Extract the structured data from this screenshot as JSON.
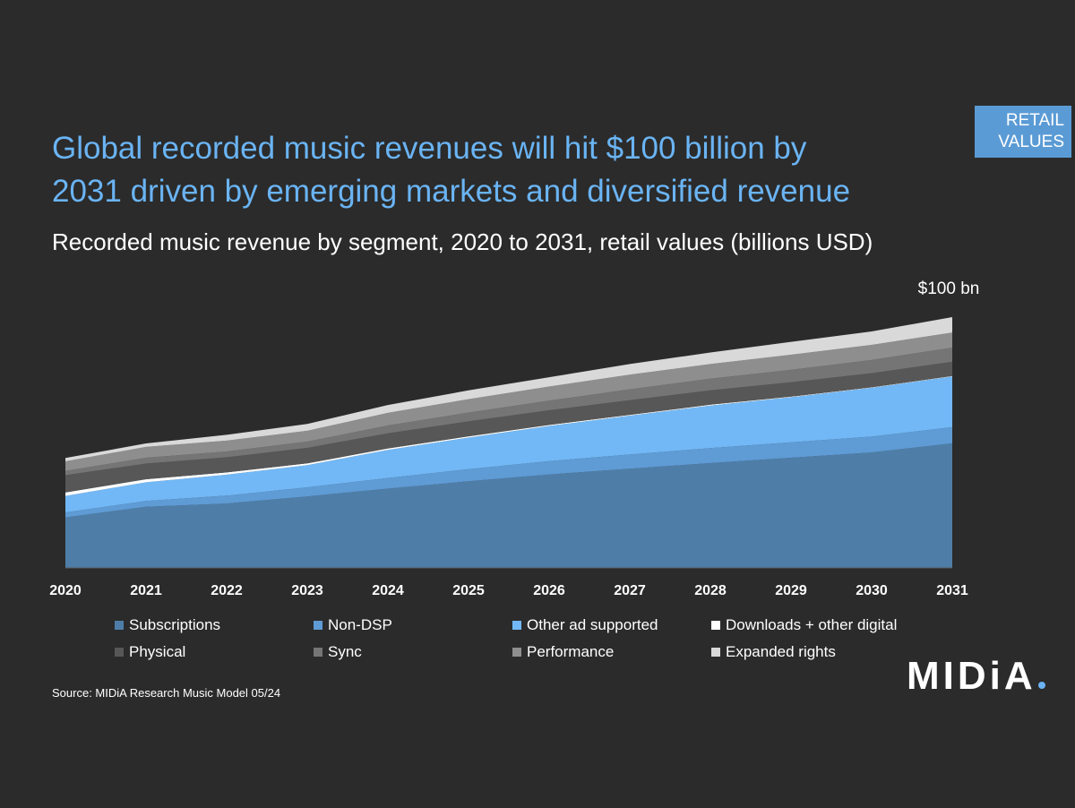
{
  "badge": {
    "line1": "RETAIL",
    "line2": "VALUES"
  },
  "title": {
    "line1": "Global recorded music revenues will hit $100 billion by",
    "line2": "2031 driven by emerging markets and diversified revenue"
  },
  "subtitle": "Recorded music revenue by segment, 2020 to 2031, retail values (billions USD)",
  "source": "Source: MIDiA Research Music Model 05/24",
  "logo": {
    "text": "MIDiA"
  },
  "colors": {
    "background": "#2b2b2b",
    "title": "#6ab4f4",
    "badge": "#5b9bd5"
  },
  "chart_data": {
    "type": "area",
    "stacked": true,
    "x": [
      "2020",
      "2021",
      "2022",
      "2023",
      "2024",
      "2025",
      "2026",
      "2027",
      "2028",
      "2029",
      "2030",
      "2031"
    ],
    "annotation": "$100 bn",
    "grid": false,
    "legend_position": "bottom",
    "series": [
      {
        "name": "Subscriptions",
        "color": "#4e7ea8",
        "values": [
          20.0,
          24.2,
          25.5,
          28.3,
          31.4,
          34.3,
          37.0,
          39.3,
          41.5,
          43.6,
          45.7,
          49.3
        ]
      },
      {
        "name": "Non-DSP",
        "color": "#5f9bd4",
        "values": [
          2.0,
          2.3,
          3.1,
          3.6,
          4.2,
          4.8,
          5.3,
          5.6,
          5.9,
          6.1,
          6.3,
          6.4
        ]
      },
      {
        "name": "Other ad supported",
        "color": "#72b8f6",
        "values": [
          6.5,
          7.4,
          8.3,
          8.8,
          11.1,
          12.5,
          13.9,
          15.4,
          16.9,
          17.9,
          19.3,
          20.1
        ]
      },
      {
        "name": "Downloads + other digital",
        "color": "#ffffff",
        "values": [
          1.4,
          1.2,
          0.9,
          0.7,
          0.6,
          0.5,
          0.4,
          0.3,
          0.3,
          0.2,
          0.2,
          0.2
        ]
      },
      {
        "name": "Physical",
        "color": "#575757",
        "values": [
          6.8,
          6.2,
          6.0,
          6.1,
          6.0,
          5.9,
          5.8,
          5.8,
          5.7,
          5.7,
          5.6,
          5.6
        ]
      },
      {
        "name": "Sync",
        "color": "#757575",
        "values": [
          1.7,
          2.3,
          2.3,
          2.5,
          3.1,
          3.5,
          3.8,
          4.3,
          4.6,
          4.9,
          5.2,
          5.6
        ]
      },
      {
        "name": "Performance",
        "color": "#8e8e8e",
        "values": [
          3.8,
          4.3,
          4.3,
          4.3,
          5.0,
          5.3,
          5.6,
          5.8,
          5.8,
          6.0,
          6.0,
          6.0
        ]
      },
      {
        "name": "Expanded rights",
        "color": "#d9d9d9",
        "values": [
          1.3,
          1.4,
          2.3,
          2.7,
          3.1,
          3.5,
          3.7,
          4.2,
          4.6,
          5.1,
          5.3,
          6.1
        ]
      }
    ]
  }
}
